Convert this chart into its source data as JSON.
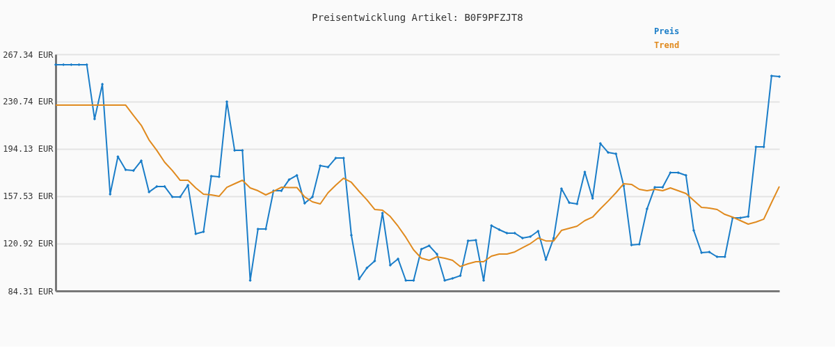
{
  "chart_data": {
    "type": "line",
    "title": "Preisentwicklung Artikel: B0F9PFZJT8",
    "categories": [
      null,
      null,
      null,
      null,
      null,
      null,
      null,
      null,
      null,
      null,
      null,
      null,
      null,
      null,
      null,
      null,
      null,
      null,
      null,
      null,
      null,
      null,
      null,
      null,
      null,
      null,
      null,
      null,
      null,
      null,
      null,
      null,
      null,
      null,
      null,
      null,
      null,
      null,
      null,
      null,
      null,
      null,
      null,
      null,
      null,
      null,
      null,
      null,
      null,
      null,
      null,
      null,
      null,
      null,
      null,
      null,
      null,
      null,
      null,
      null,
      null,
      null,
      null,
      null,
      null,
      null,
      null,
      null,
      null,
      null,
      null,
      null,
      null,
      null,
      null,
      null,
      null,
      null,
      null,
      null,
      null,
      null,
      null,
      null,
      null,
      null,
      null,
      null,
      null,
      null,
      null,
      null,
      null,
      null
    ],
    "series": [
      {
        "name": "Preis",
        "color": "#1a7dc8",
        "marker": "diamond",
        "values": [
          259.3,
          259.3,
          259.3,
          259.3,
          259.3,
          217.3,
          244.2,
          159.1,
          188.2,
          178.0,
          177.4,
          185.0,
          160.8,
          165.1,
          165.1,
          157.0,
          157.0,
          166.1,
          128.5,
          130.1,
          173.1,
          172.6,
          230.7,
          193.0,
          193.0,
          92.4,
          132.2,
          132.2,
          161.8,
          161.8,
          170.4,
          173.7,
          152.1,
          157.0,
          181.2,
          180.1,
          187.1,
          187.1,
          127.4,
          93.5,
          102.1,
          107.5,
          144.6,
          104.2,
          109.1,
          92.4,
          92.4,
          116.6,
          119.3,
          112.8,
          92.4,
          94.0,
          96.1,
          123.1,
          123.6,
          92.4,
          134.9,
          131.7,
          129.0,
          129.0,
          125.2,
          126.3,
          130.6,
          108.5,
          125.2,
          163.4,
          152.6,
          151.6,
          176.3,
          155.9,
          198.4,
          191.4,
          190.4,
          165.6,
          119.8,
          120.4,
          147.8,
          164.5,
          164.5,
          175.8,
          175.8,
          173.7,
          131.1,
          113.9,
          114.4,
          110.7,
          110.7,
          140.8,
          140.8,
          141.9,
          195.7,
          195.7,
          250.6,
          250.1
        ]
      },
      {
        "name": "Trend",
        "color": "#e08a1e",
        "marker": "none",
        "values": [
          228.0,
          228.0,
          228.0,
          228.0,
          228.0,
          228.0,
          228.0,
          228.0,
          228.0,
          228.0,
          220.0,
          212.4,
          201.1,
          193.0,
          183.9,
          177.4,
          169.9,
          169.9,
          164.0,
          159.1,
          158.6,
          157.5,
          164.5,
          167.2,
          169.9,
          164.0,
          161.8,
          158.6,
          161.3,
          164.5,
          164.3,
          164.3,
          157.0,
          153.2,
          151.6,
          160.2,
          166.1,
          171.5,
          168.3,
          161.3,
          154.8,
          147.3,
          146.8,
          141.9,
          134.4,
          125.8,
          116.1,
          109.6,
          108.0,
          110.7,
          109.6,
          108.0,
          103.2,
          105.3,
          106.9,
          106.9,
          111.2,
          112.8,
          112.8,
          114.5,
          117.7,
          120.9,
          125.2,
          123.0,
          123.0,
          131.1,
          132.8,
          134.4,
          138.7,
          141.4,
          147.8,
          153.8,
          160.2,
          167.2,
          166.7,
          162.9,
          161.8,
          162.9,
          161.8,
          164.0,
          161.8,
          159.7,
          154.3,
          148.9,
          148.4,
          147.3,
          143.5,
          141.4,
          138.7,
          136.0,
          137.6,
          139.8,
          152.7,
          165.1
        ]
      }
    ],
    "ylim": [
      84.31,
      267.34
    ],
    "yticks": [
      {
        "value": 84.31,
        "label": "84.31 EUR"
      },
      {
        "value": 120.92,
        "label": "120.92 EUR"
      },
      {
        "value": 157.53,
        "label": "157.53 EUR"
      },
      {
        "value": 194.13,
        "label": "194.13 EUR"
      },
      {
        "value": 230.74,
        "label": "230.74 EUR"
      },
      {
        "value": 267.34,
        "label": "267.34 EUR"
      }
    ],
    "grid": "y",
    "legend": "top right",
    "line_style": "solid"
  }
}
